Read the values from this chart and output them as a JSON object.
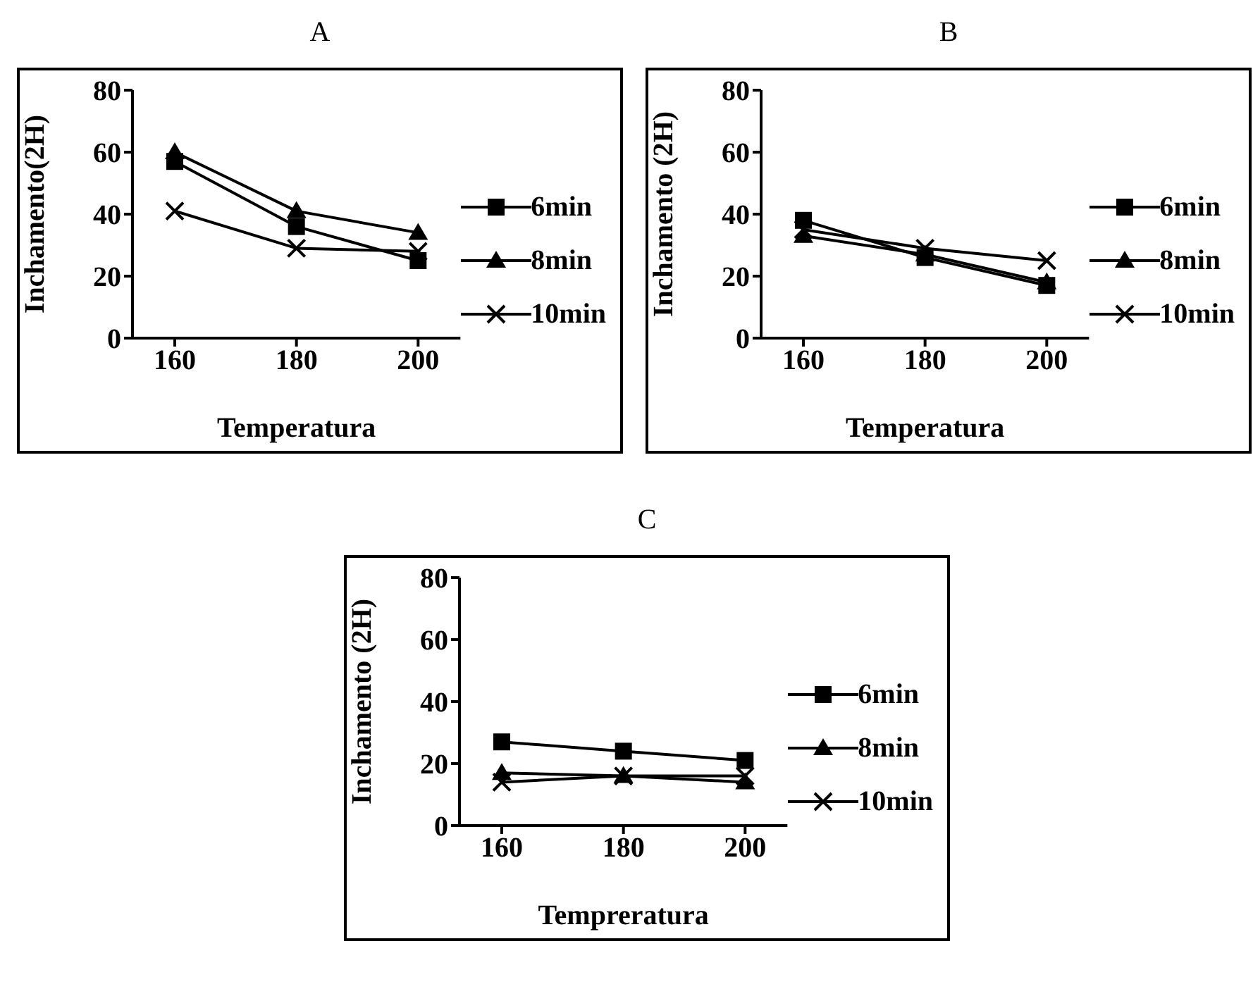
{
  "chart_data": [
    {
      "type": "line",
      "title": "A",
      "xlabel": "Temperatura",
      "ylabel": "Inchamento(2H)",
      "categories": [
        "160",
        "180",
        "200"
      ],
      "ylim": [
        0,
        80
      ],
      "yticks": [
        0,
        20,
        40,
        60,
        80
      ],
      "grid": false,
      "legend": "right",
      "series": [
        {
          "name": "6min",
          "color": "#000000",
          "marker": "square",
          "values": [
            57,
            36,
            25
          ]
        },
        {
          "name": "8min",
          "color": "#000000",
          "marker": "triangle",
          "values": [
            60,
            41,
            34
          ]
        },
        {
          "name": "10min",
          "color": "#000000",
          "marker": "cross",
          "values": [
            41,
            29,
            28
          ]
        }
      ]
    },
    {
      "type": "line",
      "title": "B",
      "xlabel": "Temperatura",
      "ylabel": "Inchamento (2H)",
      "categories": [
        "160",
        "180",
        "200"
      ],
      "ylim": [
        0,
        80
      ],
      "yticks": [
        0,
        20,
        40,
        60,
        80
      ],
      "grid": false,
      "legend": "right",
      "series": [
        {
          "name": "6min",
          "color": "#000000",
          "marker": "square",
          "values": [
            38,
            26,
            17
          ]
        },
        {
          "name": "8min",
          "color": "#000000",
          "marker": "triangle",
          "values": [
            33,
            27,
            18
          ]
        },
        {
          "name": "10min",
          "color": "#000000",
          "marker": "cross",
          "values": [
            35,
            29,
            25
          ]
        }
      ]
    },
    {
      "type": "line",
      "title": "C",
      "xlabel": "Tempreratura",
      "ylabel": "Inchamento (2H)",
      "categories": [
        "160",
        "180",
        "200"
      ],
      "ylim": [
        0,
        80
      ],
      "yticks": [
        0,
        20,
        40,
        60,
        80
      ],
      "grid": false,
      "legend": "right",
      "series": [
        {
          "name": "6min",
          "color": "#000000",
          "marker": "square",
          "values": [
            27,
            24,
            21
          ]
        },
        {
          "name": "8min",
          "color": "#000000",
          "marker": "triangle",
          "values": [
            17,
            16,
            14
          ]
        },
        {
          "name": "10min",
          "color": "#000000",
          "marker": "cross",
          "values": [
            14,
            16,
            16
          ]
        }
      ]
    }
  ]
}
